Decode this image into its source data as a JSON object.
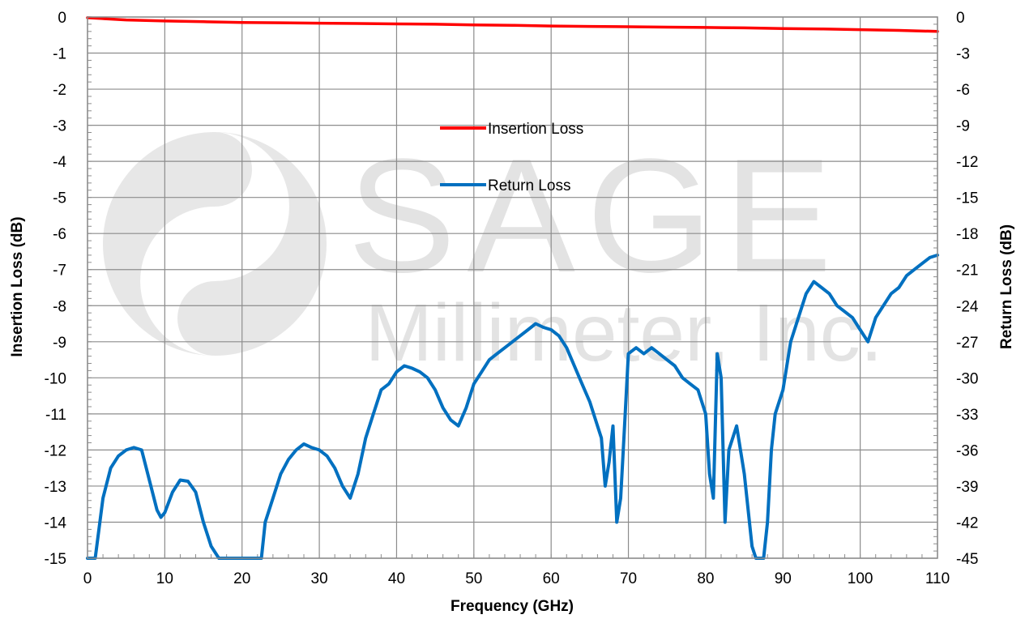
{
  "chart_data": {
    "type": "line",
    "xlabel": "Frequency (GHz)",
    "ylabel_left": "Insertion Loss (dB)",
    "ylabel_right": "Return Loss (dB)",
    "xlim": [
      0,
      110
    ],
    "xticks": [
      0,
      10,
      20,
      30,
      40,
      50,
      60,
      70,
      80,
      90,
      100,
      110
    ],
    "ylim_left": [
      -15,
      0
    ],
    "yticks_left": [
      0,
      -1,
      -2,
      -3,
      -4,
      -5,
      -6,
      -7,
      -8,
      -9,
      -10,
      -11,
      -12,
      -13,
      -14,
      -15
    ],
    "ylim_right": [
      -45,
      0
    ],
    "yticks_right": [
      0,
      -3,
      -6,
      -9,
      -12,
      -15,
      -18,
      -21,
      -24,
      -27,
      -30,
      -33,
      -36,
      -39,
      -42,
      -45
    ],
    "grid": true,
    "legend_position": "center-top",
    "watermark": {
      "line1": "SAGE",
      "line2": "Millimeter, Inc."
    },
    "series": [
      {
        "name": "Insertion Loss",
        "axis": "left",
        "color": "#ff0000",
        "x": [
          0,
          5,
          10,
          15,
          20,
          25,
          30,
          35,
          40,
          45,
          50,
          55,
          60,
          65,
          70,
          75,
          80,
          85,
          90,
          95,
          100,
          105,
          110
        ],
        "y": [
          -0.02,
          -0.08,
          -0.11,
          -0.13,
          -0.15,
          -0.16,
          -0.17,
          -0.18,
          -0.19,
          -0.2,
          -0.22,
          -0.23,
          -0.25,
          -0.26,
          -0.27,
          -0.28,
          -0.29,
          -0.3,
          -0.32,
          -0.33,
          -0.35,
          -0.37,
          -0.4
        ]
      },
      {
        "name": "Return Loss",
        "axis": "right",
        "color": "#0070c0",
        "x": [
          0,
          1,
          2,
          3,
          4,
          5,
          6,
          7,
          8,
          9,
          9.5,
          10,
          11,
          12,
          13,
          14,
          15,
          16,
          17,
          18,
          19,
          20,
          21,
          22,
          22.5,
          23,
          24,
          25,
          26,
          27,
          28,
          29,
          30,
          31,
          32,
          33,
          34,
          35,
          36,
          37,
          38,
          39,
          40,
          41,
          42,
          43,
          44,
          45,
          46,
          47,
          48,
          49,
          50,
          51,
          52,
          53,
          54,
          55,
          56,
          57,
          58,
          59,
          60,
          61,
          62,
          63,
          64,
          65,
          66,
          66.5,
          67,
          67.5,
          68,
          68.5,
          69,
          69.5,
          70,
          71,
          72,
          73,
          74,
          75,
          76,
          77,
          78,
          79,
          80,
          80.5,
          81,
          81.5,
          82,
          82.5,
          83,
          84,
          85,
          86,
          86.5,
          87,
          87.5,
          88,
          88.5,
          89,
          90,
          91,
          92,
          93,
          94,
          95,
          96,
          97,
          98,
          99,
          100,
          101,
          102,
          103,
          104,
          105,
          106,
          107,
          108,
          109,
          110
        ],
        "y": [
          -45,
          -45,
          -40,
          -37.5,
          -36.5,
          -36,
          -35.8,
          -36,
          -38.5,
          -41,
          -41.6,
          -41.2,
          -39.5,
          -38.5,
          -38.6,
          -39.5,
          -42,
          -44,
          -45,
          -45,
          -45,
          -45,
          -45,
          -45,
          -45,
          -42,
          -40,
          -38,
          -36.8,
          -36,
          -35.5,
          -35.8,
          -36,
          -36.5,
          -37.5,
          -39,
          -40,
          -38,
          -35,
          -33,
          -31,
          -30.5,
          -29.5,
          -29,
          -29.2,
          -29.5,
          -30,
          -31,
          -32.5,
          -33.5,
          -34,
          -32.5,
          -30.5,
          -29.5,
          -28.5,
          -28,
          -27.5,
          -27,
          -26.5,
          -26,
          -25.5,
          -25.8,
          -26,
          -26.5,
          -27.5,
          -29,
          -30.5,
          -32,
          -34,
          -35,
          -39,
          -37,
          -34,
          -42,
          -40,
          -34,
          -28,
          -27.5,
          -28,
          -27.5,
          -28,
          -28.5,
          -29,
          -30,
          -30.5,
          -31,
          -33,
          -38,
          -40,
          -28,
          -30,
          -42,
          -36,
          -34,
          -38,
          -44,
          -45,
          -45,
          -45,
          -42,
          -36,
          -33,
          -31,
          -27,
          -25,
          -23,
          -22,
          -22.5,
          -23,
          -24,
          -24.5,
          -25,
          -26,
          -27,
          -25,
          -24,
          -23,
          -22.5,
          -21.5,
          -21,
          -20.5,
          -20,
          -19.8
        ]
      }
    ]
  }
}
